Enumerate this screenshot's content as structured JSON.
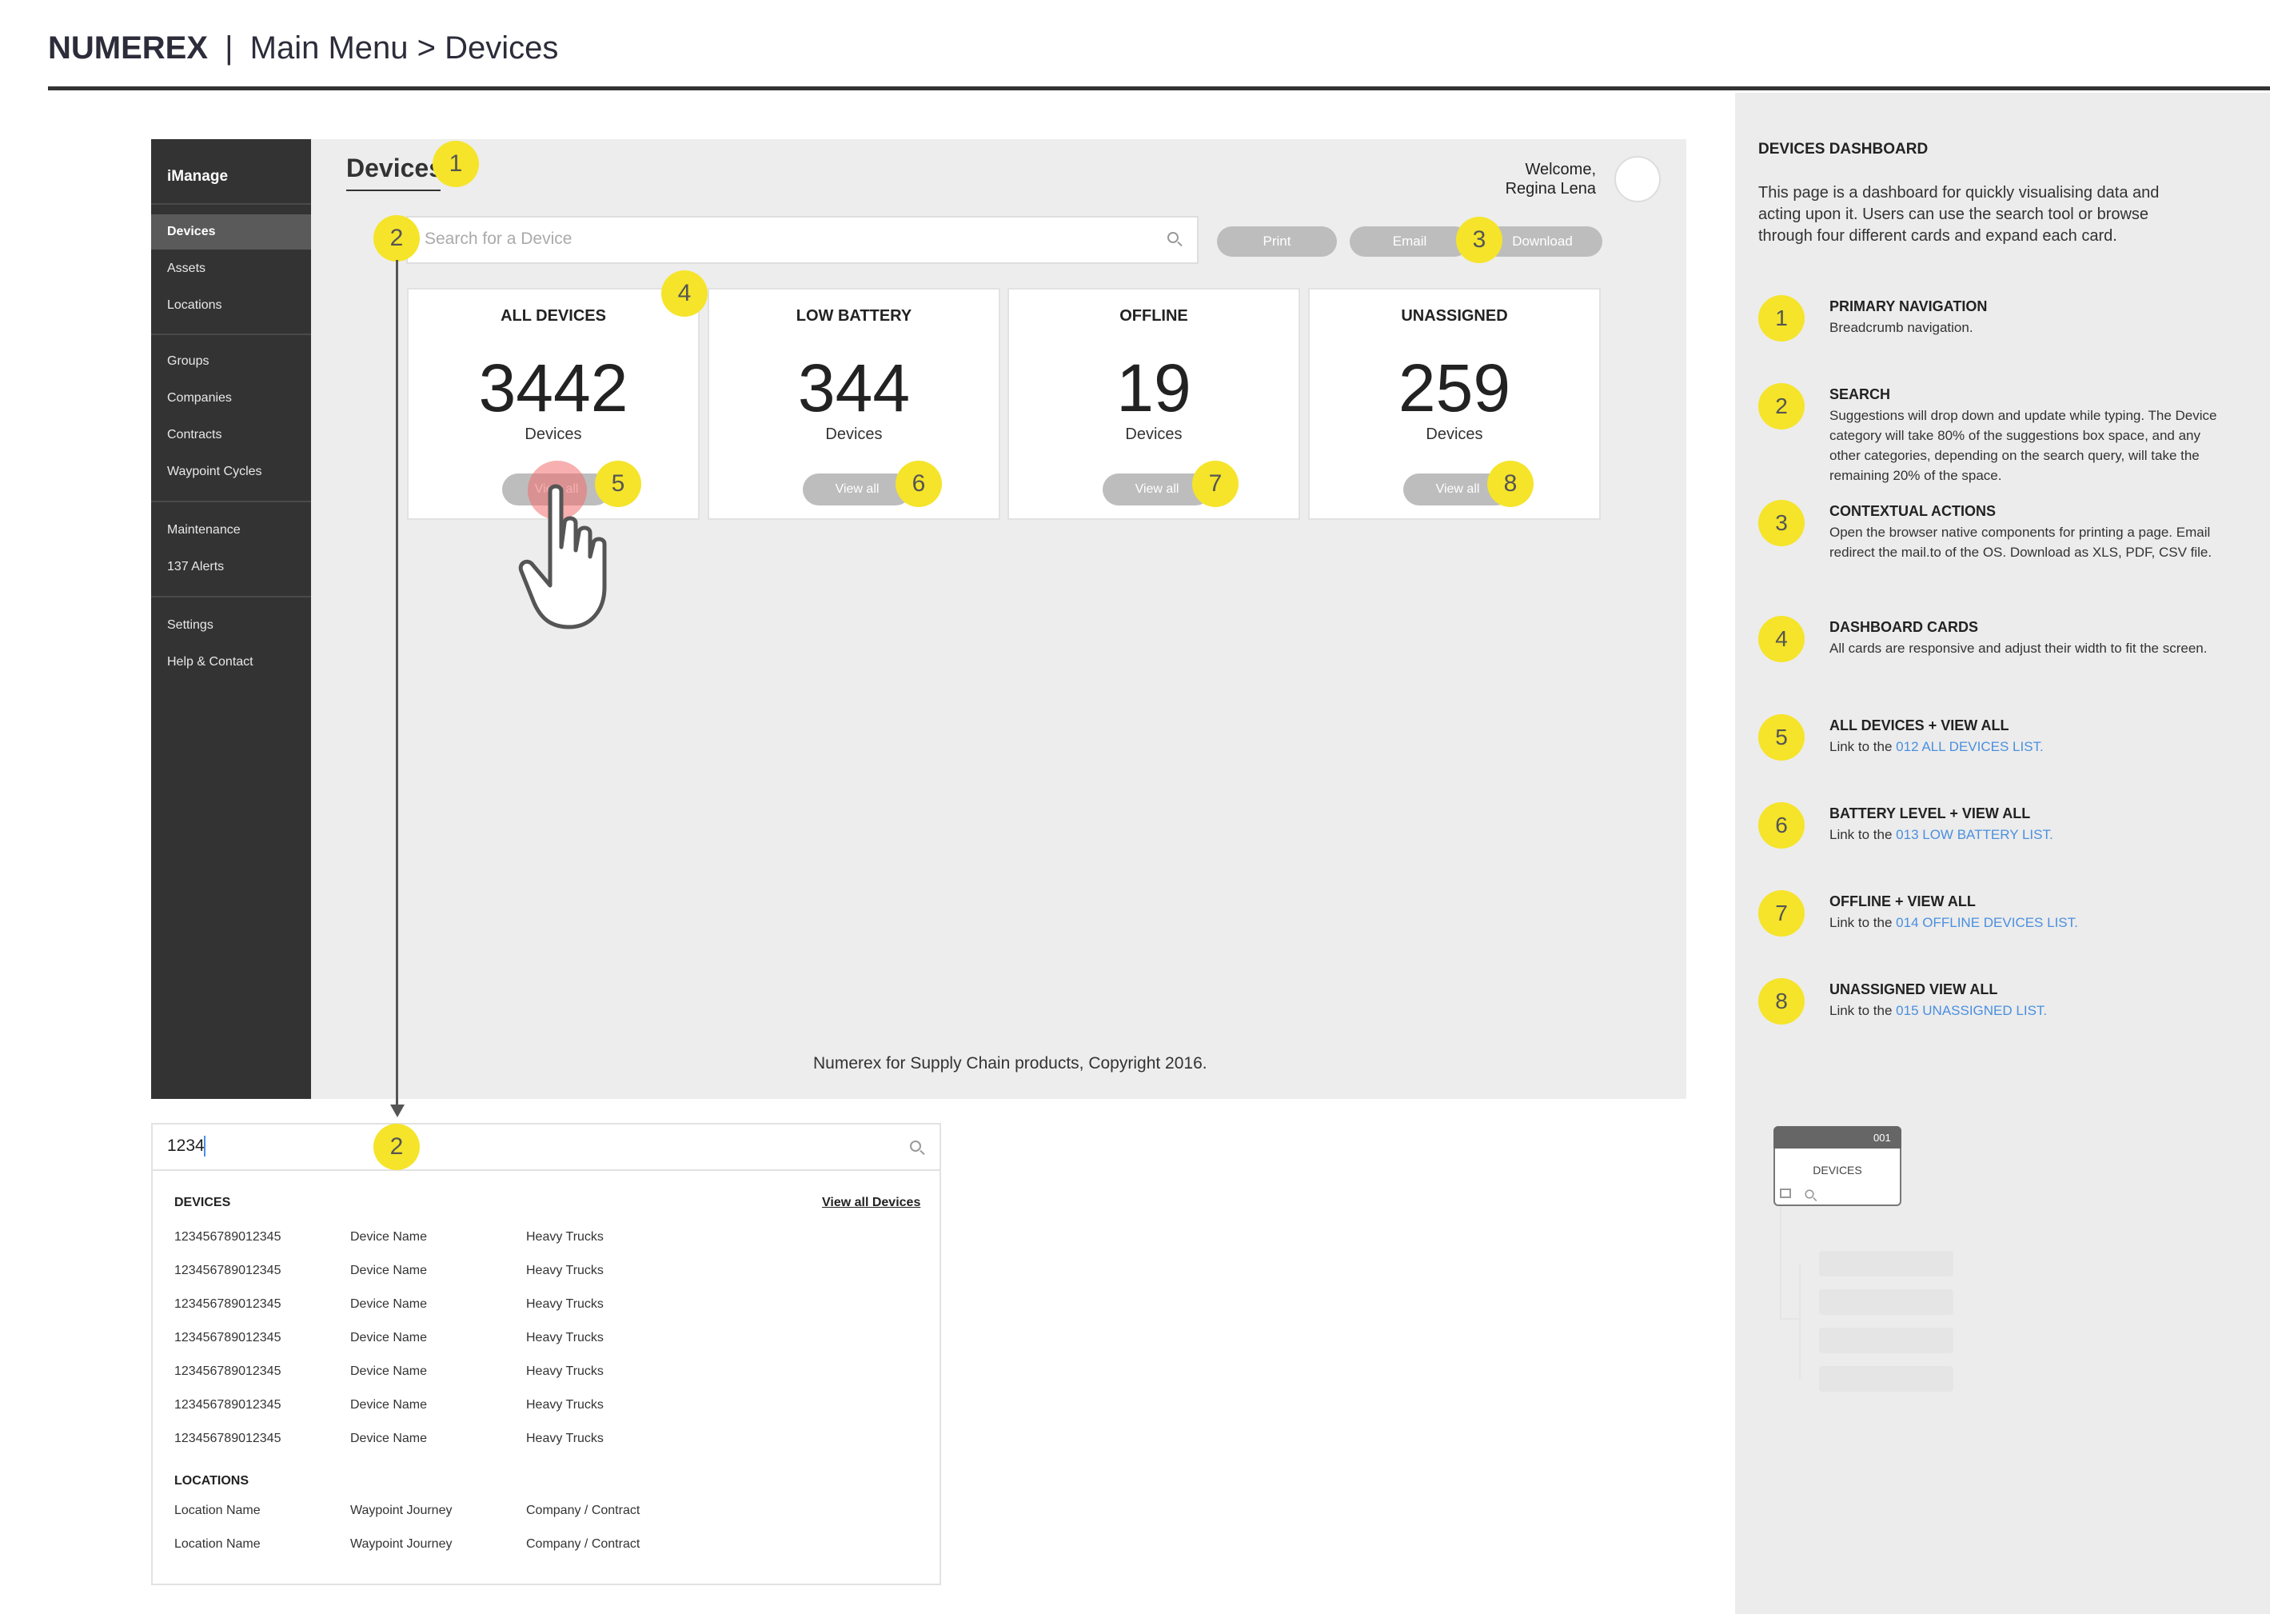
{
  "doc": {
    "brand": "NUMEREX",
    "separator": "|",
    "breadcrumb": "Main Menu > Devices"
  },
  "sidebar": {
    "brand": "iManage",
    "items": [
      "Devices",
      "Assets",
      "Locations",
      "Groups",
      "Companies",
      "Contracts",
      "Waypoint Cycles",
      "Maintenance",
      "137 Alerts",
      "Settings",
      "Help & Contact"
    ]
  },
  "main": {
    "page_title": "Devices",
    "welcome_line1": "Welcome,",
    "welcome_line2": "Regina Lena",
    "search_placeholder": "Search for a Device",
    "actions": [
      "Print",
      "Email",
      "Download"
    ],
    "cards": [
      {
        "title": "ALL DEVICES",
        "value": "3442",
        "label": "Devices",
        "button": "View all"
      },
      {
        "title": "LOW BATTERY",
        "value": "344",
        "label": "Devices",
        "button": "View all"
      },
      {
        "title": "OFFLINE",
        "value": "19",
        "label": "Devices",
        "button": "View all"
      },
      {
        "title": "UNASSIGNED",
        "value": "259",
        "label": "Devices",
        "button": "View all"
      }
    ],
    "footer": "Numerex for Supply Chain products, Copyright 2016."
  },
  "badges": [
    "1",
    "2",
    "3",
    "4",
    "5",
    "6",
    "7",
    "8"
  ],
  "dropdown": {
    "query": "1234",
    "devices_heading": "DEVICES",
    "view_all": "View all Devices",
    "device_rows": [
      [
        "123456789012345",
        "Device Name",
        "Heavy Trucks"
      ],
      [
        "123456789012345",
        "Device Name",
        "Heavy Trucks"
      ],
      [
        "123456789012345",
        "Device Name",
        "Heavy Trucks"
      ],
      [
        "123456789012345",
        "Device Name",
        "Heavy Trucks"
      ],
      [
        "123456789012345",
        "Device Name",
        "Heavy Trucks"
      ],
      [
        "123456789012345",
        "Device Name",
        "Heavy Trucks"
      ],
      [
        "123456789012345",
        "Device Name",
        "Heavy Trucks"
      ]
    ],
    "locations_heading": "LOCATIONS",
    "location_rows": [
      [
        "Location Name",
        "Waypoint Journey",
        "Company / Contract"
      ],
      [
        "Location Name",
        "Waypoint Journey",
        "Company / Contract"
      ]
    ]
  },
  "panel": {
    "title": "DEVICES DASHBOARD",
    "intro": "This page is a dashboard for quickly visualising data and acting upon it. Users can use the search tool or browse through four different cards and expand each card.",
    "items": [
      {
        "num": "1",
        "head": "PRIMARY NAVIGATION",
        "body": "Breadcrumb navigation.",
        "link": ""
      },
      {
        "num": "2",
        "head": "SEARCH",
        "body": "Suggestions will drop down and update while typing. The Device category will take 80% of the suggestions box space, and any other categories, depending on the search query, will take the remaining 20% of the space.",
        "link": ""
      },
      {
        "num": "3",
        "head": "CONTEXTUAL ACTIONS",
        "body": "Open the browser native components for printing a page. Email redirect the mail.to of the OS. Download as XLS, PDF, CSV file.",
        "link": ""
      },
      {
        "num": "4",
        "head": "DASHBOARD CARDS",
        "body": "All cards are responsive and adjust their width to fit the screen.",
        "link": ""
      },
      {
        "num": "5",
        "head": "ALL DEVICES + VIEW ALL",
        "body": "Link to the ",
        "link": "012 ALL DEVICES LIST."
      },
      {
        "num": "6",
        "head": "BATTERY LEVEL + VIEW ALL",
        "body": "Link to the ",
        "link": "013 LOW BATTERY LIST."
      },
      {
        "num": "7",
        "head": "OFFLINE + VIEW ALL",
        "body": "Link to the ",
        "link": "014 OFFLINE DEVICES LIST."
      },
      {
        "num": "8",
        "head": "UNASSIGNED VIEW ALL",
        "body": "Link to the ",
        "link": "015 UNASSIGNED LIST."
      }
    ]
  },
  "sitemap": {
    "node_id": "001",
    "node_label": "DEVICES"
  },
  "colors": {
    "sidebar": "#333333",
    "highlight": "#f5e42a",
    "link": "#4a8fe0",
    "pill": "#bdbdbd"
  }
}
